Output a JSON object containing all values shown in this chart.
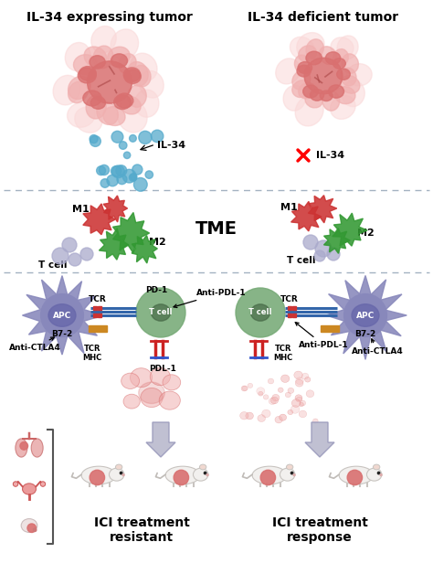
{
  "title_left": "IL-34 expressing tumor",
  "title_right": "IL-34 deficient tumor",
  "tme_label": "TME",
  "il34_label": "IL-34",
  "label_bottom_left": "ICI treatment\nresistant",
  "label_bottom_right": "ICI treatment\nresponse",
  "bg_color": "#ffffff",
  "title_fontsize": 10,
  "label_fontsize": 10,
  "tme_fontsize": 14,
  "dashed_line_color": "#99aabb",
  "tumor_color_main": "#d97070",
  "tumor_color_light": "#f0b0b0",
  "tumor_color_very_light": "#fad8d8",
  "apc_color": "#8888bb",
  "tcell_color": "#77aa77",
  "m1_color": "#cc3333",
  "m2_color": "#339933",
  "blue_dot_color": "#55aacc",
  "lavender_cell_color": "#aaaacc",
  "connector_color": "#3366aa",
  "orange_bar_color": "#cc8822"
}
